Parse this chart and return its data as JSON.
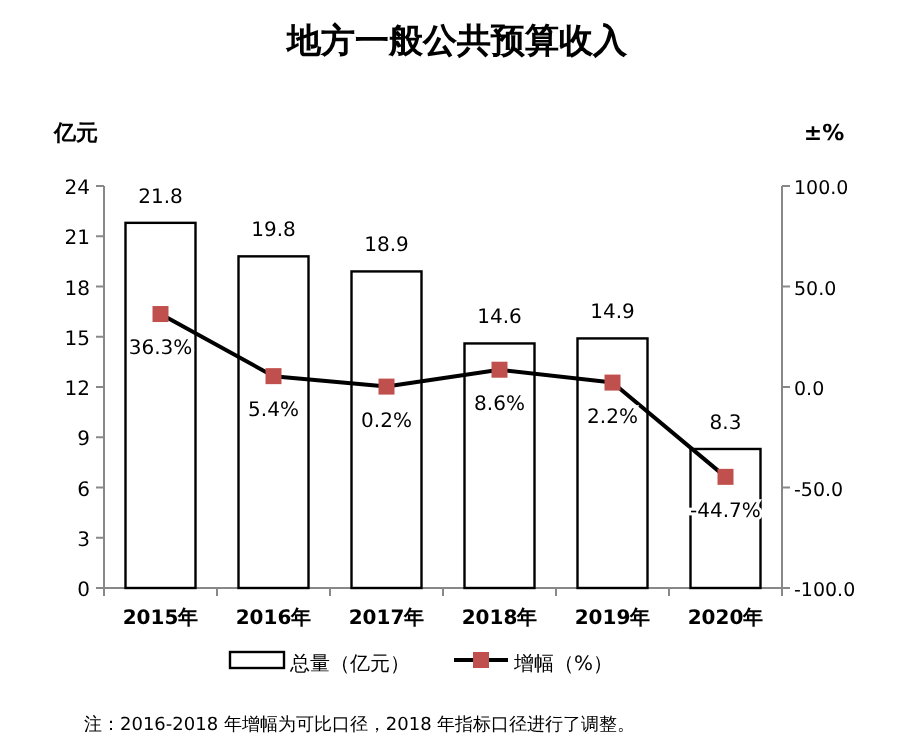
{
  "chart_data": {
    "type": "bar",
    "title": "地方一般公共预算收入",
    "ylabel": "亿元",
    "y2label": "±%",
    "categories": [
      "2015年",
      "2016年",
      "2017年",
      "2018年",
      "2019年",
      "2020年"
    ],
    "series": [
      {
        "name": "总量（亿元）",
        "color": "#ffffff",
        "values": [
          21.8,
          19.8,
          18.9,
          14.6,
          14.9,
          8.3
        ],
        "value_labels": [
          "21.8",
          "19.8",
          "18.9",
          "14.6",
          "14.9",
          "8.3"
        ]
      },
      {
        "name": "增幅（%）",
        "type": "line",
        "axis": "y2",
        "color": "#000000",
        "colors": [
          "#c0504d",
          "#c0504d",
          "#c0504d",
          "#c0504d",
          "#c0504d",
          "#c0504d"
        ],
        "marker": "square",
        "values": [
          36.3,
          5.4,
          0.2,
          8.6,
          2.2,
          -44.7
        ],
        "value_labels": [
          "36.3%",
          "5.4%",
          "0.2%",
          "8.6%",
          "2.2%",
          "-44.7%"
        ]
      }
    ],
    "ylim": [
      0,
      24
    ],
    "yticks": [
      0,
      3,
      6,
      9,
      12,
      15,
      18,
      21,
      24
    ],
    "y2lim": [
      -100,
      100
    ],
    "y2ticks": [
      {
        "value": 100,
        "label": "100.0"
      },
      {
        "value": 50,
        "label": "50.0"
      },
      {
        "value": 0,
        "label": "0.0"
      },
      {
        "value": -50,
        "label": "-50.0"
      },
      {
        "value": -100,
        "label": "-100.0"
      }
    ],
    "grid": false,
    "legend": "bottom",
    "annotations": [
      "注：2016-2018 年增幅为可比口径，2018 年指标口径进行了调整。"
    ]
  }
}
